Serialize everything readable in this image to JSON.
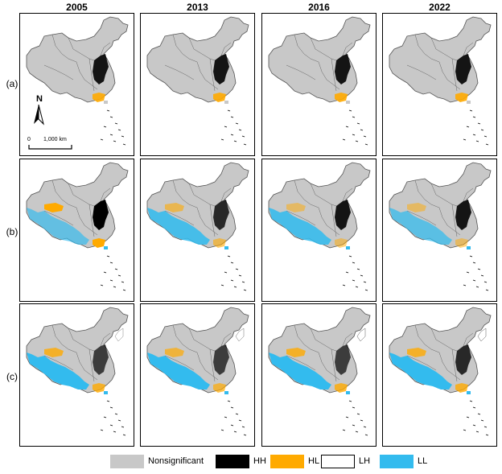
{
  "years": [
    "2005",
    "2013",
    "2016",
    "2022"
  ],
  "rows": [
    {
      "label": "(a)",
      "cells": [
        {
          "hh": 0.9,
          "hl": 0.9,
          "ll": 0.0,
          "lh": 0.1
        },
        {
          "hh": 0.9,
          "hl": 0.9,
          "ll": 0.0,
          "lh": 0.1
        },
        {
          "hh": 0.9,
          "hl": 0.9,
          "ll": 0.0,
          "lh": 0.1
        },
        {
          "hh": 0.9,
          "hl": 0.9,
          "ll": 0.0,
          "lh": 0.1
        }
      ]
    },
    {
      "label": "(b)",
      "cells": [
        {
          "hh": 1.0,
          "hl": 1.0,
          "ll": 0.5,
          "lh": 0.2
        },
        {
          "hh": 0.8,
          "hl": 0.6,
          "ll": 0.8,
          "lh": 0.2
        },
        {
          "hh": 0.9,
          "hl": 0.5,
          "ll": 0.8,
          "lh": 0.2
        },
        {
          "hh": 0.9,
          "hl": 0.5,
          "ll": 0.6,
          "lh": 0.2
        }
      ]
    },
    {
      "label": "(c)",
      "cells": [
        {
          "hh": 0.7,
          "hl": 0.8,
          "ll": 1.0,
          "lh": 0.6
        },
        {
          "hh": 0.7,
          "hl": 0.7,
          "ll": 1.0,
          "lh": 0.7
        },
        {
          "hh": 0.7,
          "hl": 0.8,
          "ll": 1.0,
          "lh": 0.8
        },
        {
          "hh": 0.8,
          "hl": 0.8,
          "ll": 1.0,
          "lh": 0.8
        }
      ]
    }
  ],
  "north_label": "N",
  "scale": {
    "zero": "0",
    "dist": "1,000 km"
  },
  "legend": [
    {
      "label": "Nonsignificant",
      "color": "#c8c8c8"
    },
    {
      "label": "HH",
      "color": "#000000"
    },
    {
      "label": "HL",
      "color": "#ffaa00"
    },
    {
      "label": "LH",
      "color": "#ffffff"
    },
    {
      "label": "LL",
      "color": "#33bbee"
    }
  ]
}
